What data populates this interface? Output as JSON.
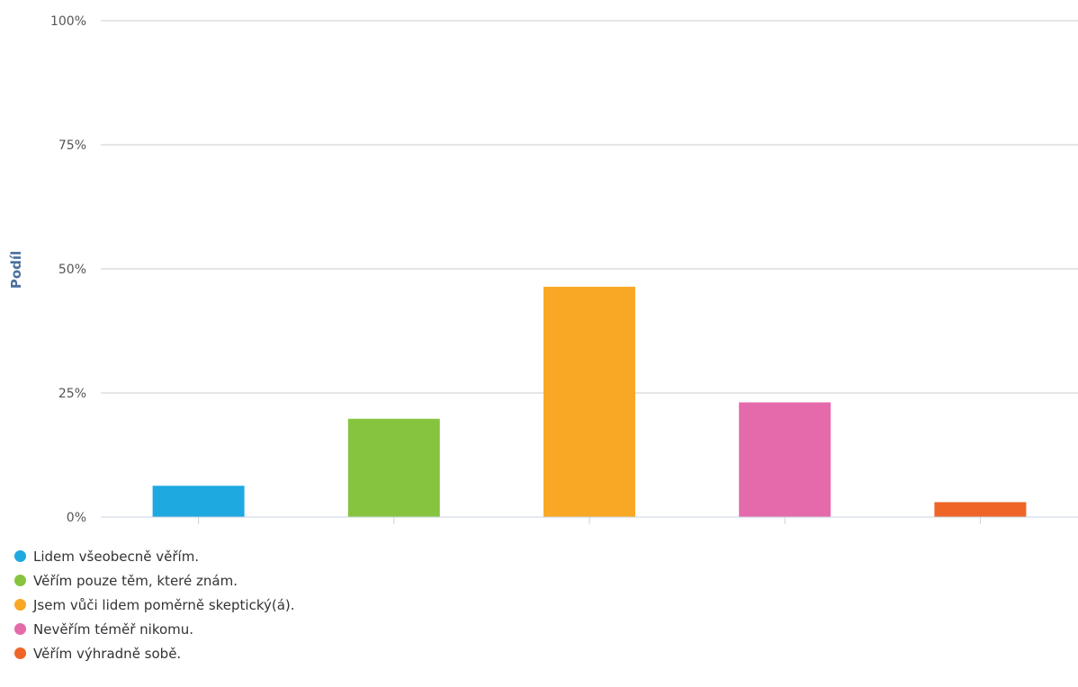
{
  "chart_data": {
    "type": "bar",
    "ylabel": "Podíl",
    "ylim": [
      0,
      100
    ],
    "yticks": [
      0,
      25,
      50,
      75,
      100
    ],
    "ytick_labels": [
      "0%",
      "25%",
      "50%",
      "75%",
      "100%"
    ],
    "grid": true,
    "legend_position": "bottom-left",
    "categories": [
      "Lidem všeobecně věřím.",
      "Věřím pouze těm, které znám.",
      "Jsem vůči lidem poměrně skeptický(á).",
      "Nevěřím téměř nikomu.",
      "Věřím výhradně sobě."
    ],
    "values": [
      6.3,
      19.8,
      46.4,
      23.1,
      3.0
    ],
    "colors": [
      "#1ea9e1",
      "#86c440",
      "#f9a825",
      "#e56aab",
      "#ef6528"
    ]
  },
  "colors": {
    "grid": "#cccccc",
    "axis": "#c8d2e0",
    "axis_title": "#4a6f9c"
  }
}
